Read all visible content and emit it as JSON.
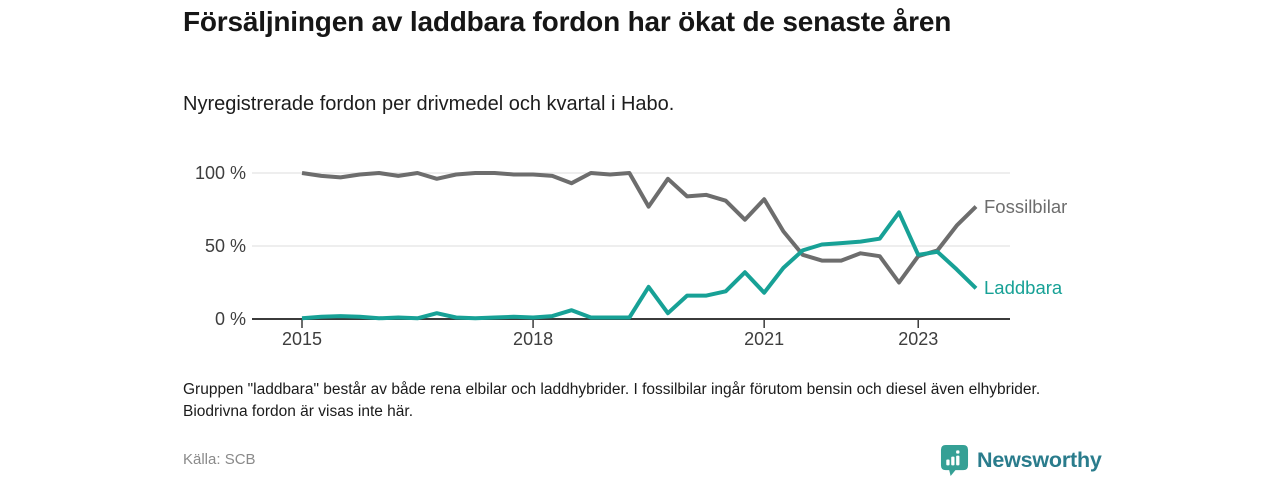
{
  "header": {
    "title": "Försäljningen av laddbara fordon har ökat de senaste åren",
    "subtitle": "Nyregistrerade fordon per drivmedel och kvartal i Habo."
  },
  "chart_data": {
    "type": "line",
    "title": "Försäljningen av laddbara fordon har ökat de senaste åren",
    "subtitle": "Nyregistrerade fordon per drivmedel och kvartal i Habo.",
    "unit": "percent",
    "frequency": "quarterly",
    "start": "2015 Q1",
    "end": "2023 Q4",
    "grid": true,
    "legend_position": "line-end-labels",
    "x_axis": {
      "tick_labels": [
        "2015",
        "2018",
        "2021",
        "2023"
      ],
      "tick_quarter_index": [
        0,
        12,
        24,
        32
      ]
    },
    "y_axis": {
      "tick_labels": [
        "100 %",
        "50 %",
        "0 %"
      ],
      "tick_values": [
        100,
        50,
        0
      ],
      "range": [
        0,
        100
      ]
    },
    "series": [
      {
        "name": "Fossilbilar",
        "color": "#6d6d6d",
        "values": [
          100,
          98,
          97,
          99,
          100,
          98,
          100,
          96,
          99,
          100,
          100,
          99,
          99,
          98,
          93,
          100,
          99,
          100,
          77,
          96,
          84,
          85,
          81,
          68,
          82,
          60,
          44,
          40,
          40,
          45,
          43,
          25,
          43,
          47,
          64,
          77
        ]
      },
      {
        "name": "Laddbara",
        "color": "#17a196",
        "values": [
          0.5,
          1.5,
          2,
          1.5,
          0.5,
          1,
          0.5,
          4,
          1,
          0.5,
          1,
          1.5,
          1,
          2,
          6,
          1,
          1,
          1,
          22,
          4,
          16,
          16,
          19,
          32,
          18,
          35,
          47,
          51,
          52,
          53,
          55,
          73,
          44,
          46,
          34,
          21
        ]
      }
    ]
  },
  "footnote": "Gruppen \"laddbara\" består av både rena elbilar och laddhybrider. I fossilbilar ingår förutom bensin och diesel även elhybrider. Biodrivna fordon är visas inte här.",
  "source": "Källa: SCB",
  "logo": {
    "text": "Newsworthy",
    "icon": "bar-chart-speech-bubble-icon",
    "icon_color": "#35a095",
    "text_color": "#2a7c8c"
  }
}
